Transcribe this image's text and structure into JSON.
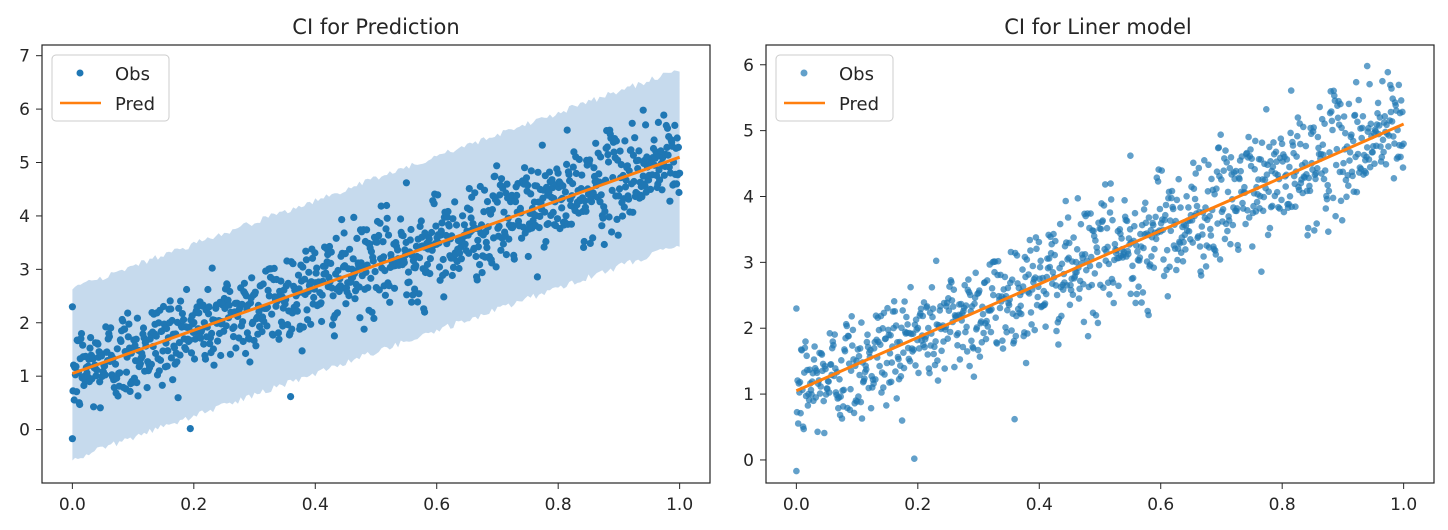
{
  "colors": {
    "obs": "#1f77b4",
    "pred": "#ff7f0e",
    "band": "#bcd4ea",
    "axes": "#262626",
    "legend_border": "#cccccc"
  },
  "chart_data": [
    {
      "type": "scatter",
      "title": "CI for Prediction",
      "xlabel": "",
      "ylabel": "",
      "xlim": [
        -0.05,
        1.05
      ],
      "ylim": [
        -1.0,
        7.2
      ],
      "xticks": [
        0.0,
        0.2,
        0.4,
        0.6,
        0.8,
        1.0
      ],
      "xtick_labels": [
        "0.0",
        "0.2",
        "0.4",
        "0.6",
        "0.8",
        "1.0"
      ],
      "yticks": [
        0,
        1,
        2,
        3,
        4,
        5,
        6,
        7
      ],
      "ytick_labels": [
        "0",
        "1",
        "2",
        "3",
        "4",
        "5",
        "6",
        "7"
      ],
      "legend": {
        "placement": "upper-left",
        "entries": [
          "Obs",
          "Pred"
        ]
      },
      "grid": false,
      "series": [
        {
          "name": "Obs",
          "kind": "points",
          "x_range": [
            0.0,
            1.0
          ],
          "n": 1000,
          "intercept": 1.05,
          "slope": 4.05,
          "noise_sd": 0.45,
          "outliers": [
            {
              "x": 0.0,
              "y": -0.17
            },
            {
              "x": 0.55,
              "y": 4.62
            },
            {
              "x": 0.94,
              "y": 5.98
            },
            {
              "x": 0.58,
              "y": 2.2
            }
          ]
        },
        {
          "name": "Pred",
          "kind": "line",
          "x": [
            0.0,
            1.0
          ],
          "y": [
            1.05,
            5.1
          ]
        }
      ],
      "ci_band": {
        "x": [
          0.0,
          1.0
        ],
        "lower": [
          -0.55,
          3.45
        ],
        "upper": [
          2.65,
          6.75
        ]
      }
    },
    {
      "type": "scatter",
      "title": "CI for Liner model",
      "xlabel": "",
      "ylabel": "",
      "xlim": [
        -0.05,
        1.05
      ],
      "ylim": [
        -0.35,
        6.3
      ],
      "xticks": [
        0.0,
        0.2,
        0.4,
        0.6,
        0.8,
        1.0
      ],
      "xtick_labels": [
        "0.0",
        "0.2",
        "0.4",
        "0.6",
        "0.8",
        "1.0"
      ],
      "yticks": [
        0,
        1,
        2,
        3,
        4,
        5,
        6
      ],
      "ytick_labels": [
        "0",
        "1",
        "2",
        "3",
        "4",
        "5",
        "6"
      ],
      "legend": {
        "placement": "upper-left",
        "entries": [
          "Obs",
          "Pred"
        ]
      },
      "grid": false,
      "series": [
        {
          "name": "Obs",
          "kind": "points",
          "x_range": [
            0.0,
            1.0
          ],
          "n": 1000,
          "intercept": 1.05,
          "slope": 4.05,
          "noise_sd": 0.45,
          "outliers": [
            {
              "x": 0.0,
              "y": -0.17
            },
            {
              "x": 0.55,
              "y": 4.62
            },
            {
              "x": 0.94,
              "y": 5.98
            },
            {
              "x": 0.58,
              "y": 2.2
            }
          ]
        },
        {
          "name": "Pred",
          "kind": "line",
          "x": [
            0.0,
            1.0
          ],
          "y": [
            1.05,
            5.1
          ]
        }
      ],
      "ci_band": {
        "x": [
          0.0,
          1.0
        ],
        "lower": [
          1.0,
          5.0
        ],
        "upper": [
          1.1,
          5.2
        ]
      }
    }
  ]
}
